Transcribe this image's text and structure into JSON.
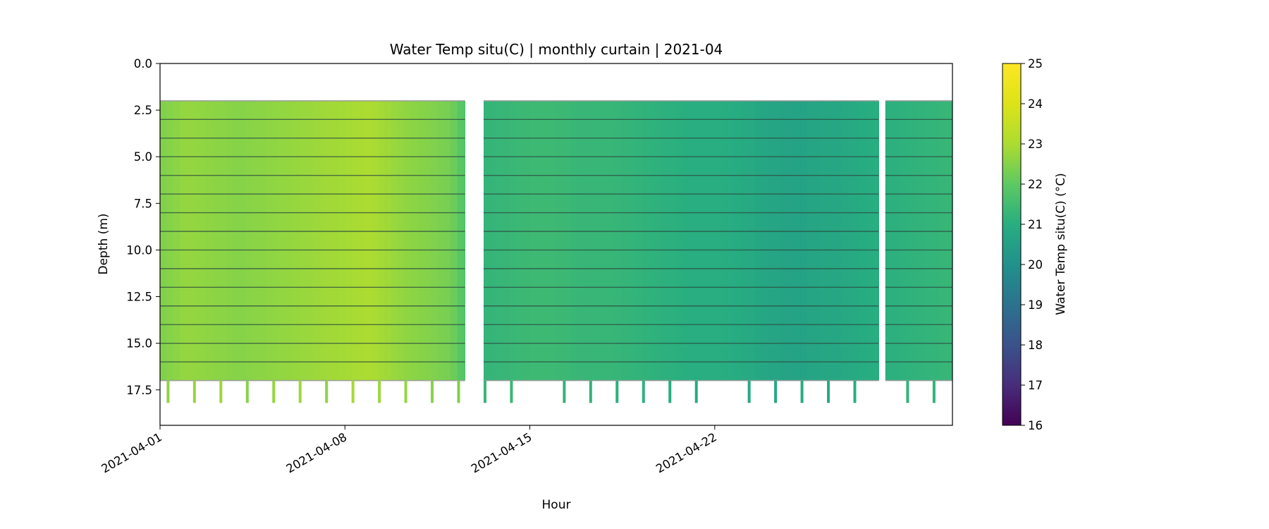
{
  "chart_data": {
    "type": "heatmap",
    "title": "Water Temp situ(C) | monthly curtain | 2021-04",
    "xlabel": "Hour",
    "ylabel": "Depth (m)",
    "x_tick_labels": [
      "2021-04-01",
      "2021-04-08",
      "2021-04-15",
      "2021-04-22"
    ],
    "y_tick_labels": [
      "0.0",
      "2.5",
      "5.0",
      "7.5",
      "10.0",
      "12.5",
      "15.0",
      "17.5"
    ],
    "y_inverted": true,
    "x_range": [
      "2021-04-01",
      "2021-05-01"
    ],
    "y_range": [
      0,
      19.4
    ],
    "colorbar": {
      "label": "Water Temp situ(C) (°C)",
      "range": [
        16,
        25
      ],
      "tick_labels": [
        "16",
        "17",
        "18",
        "19",
        "20",
        "21",
        "22",
        "23",
        "24",
        "25"
      ],
      "colormap": "viridis"
    },
    "sensor_depths_m": [
      2,
      3,
      4,
      5,
      6,
      7,
      8,
      9,
      10,
      11,
      12,
      13,
      14,
      15,
      16,
      17
    ],
    "data_segments": [
      {
        "start": "2021-04-01",
        "end": "2021-04-12 13:00",
        "top_depth": 2.0,
        "bottom_depth": 17.0
      },
      {
        "start": "2021-04-13 06:00",
        "end": "2021-04-28 05:00",
        "top_depth": 2.0,
        "bottom_depth": 17.0
      },
      {
        "start": "2021-04-28 11:00",
        "end": "2021-05-01",
        "top_depth": 2.0,
        "bottom_depth": 17.0
      }
    ],
    "daily_temperature_c": [
      {
        "date": "2021-04-01",
        "value": 22.4
      },
      {
        "date": "2021-04-02",
        "value": 22.7
      },
      {
        "date": "2021-04-03",
        "value": 22.6
      },
      {
        "date": "2021-04-04",
        "value": 22.5
      },
      {
        "date": "2021-04-05",
        "value": 22.6
      },
      {
        "date": "2021-04-06",
        "value": 22.7
      },
      {
        "date": "2021-04-07",
        "value": 22.8
      },
      {
        "date": "2021-04-08",
        "value": 22.9
      },
      {
        "date": "2021-04-09",
        "value": 23.0
      },
      {
        "date": "2021-04-10",
        "value": 22.7
      },
      {
        "date": "2021-04-11",
        "value": 22.5
      },
      {
        "date": "2021-04-12",
        "value": 22.3
      },
      {
        "date": "2021-04-13",
        "value": 21.2
      },
      {
        "date": "2021-04-14",
        "value": 21.3
      },
      {
        "date": "2021-04-15",
        "value": 21.4
      },
      {
        "date": "2021-04-16",
        "value": 21.4
      },
      {
        "date": "2021-04-17",
        "value": 21.3
      },
      {
        "date": "2021-04-18",
        "value": 21.3
      },
      {
        "date": "2021-04-19",
        "value": 21.2
      },
      {
        "date": "2021-04-20",
        "value": 21.1
      },
      {
        "date": "2021-04-21",
        "value": 21.0
      },
      {
        "date": "2021-04-22",
        "value": 21.0
      },
      {
        "date": "2021-04-23",
        "value": 20.9
      },
      {
        "date": "2021-04-24",
        "value": 20.7
      },
      {
        "date": "2021-04-25",
        "value": 20.6
      },
      {
        "date": "2021-04-26",
        "value": 20.7
      },
      {
        "date": "2021-04-27",
        "value": 20.8
      },
      {
        "date": "2021-04-28",
        "value": 21.0
      },
      {
        "date": "2021-04-29",
        "value": 21.1
      },
      {
        "date": "2021-04-30",
        "value": 21.2
      },
      {
        "date": "2021-05-01",
        "value": 21.3
      }
    ],
    "deep_readings_at_18m": [
      {
        "date": "2021-04-01",
        "value": 22.6
      },
      {
        "date": "2021-04-02",
        "value": 22.7
      },
      {
        "date": "2021-04-03",
        "value": 22.8
      },
      {
        "date": "2021-04-04",
        "value": 22.5
      },
      {
        "date": "2021-04-05",
        "value": 22.7
      },
      {
        "date": "2021-04-06",
        "value": 22.8
      },
      {
        "date": "2021-04-07",
        "value": 22.6
      },
      {
        "date": "2021-04-08",
        "value": 22.9
      },
      {
        "date": "2021-04-09",
        "value": 22.8
      },
      {
        "date": "2021-04-10",
        "value": 22.7
      },
      {
        "date": "2021-04-11",
        "value": 22.5
      },
      {
        "date": "2021-04-12",
        "value": 22.4
      },
      {
        "date": "2021-04-13",
        "value": 21.3
      },
      {
        "date": "2021-04-14",
        "value": 21.3
      },
      {
        "date": "2021-04-16",
        "value": 21.2
      },
      {
        "date": "2021-04-17",
        "value": 21.2
      },
      {
        "date": "2021-04-18",
        "value": 21.1
      },
      {
        "date": "2021-04-19",
        "value": 21.1
      },
      {
        "date": "2021-04-20",
        "value": 21.0
      },
      {
        "date": "2021-04-21",
        "value": 20.9
      },
      {
        "date": "2021-04-23",
        "value": 20.9
      },
      {
        "date": "2021-04-24",
        "value": 20.8
      },
      {
        "date": "2021-04-25",
        "value": 20.9
      },
      {
        "date": "2021-04-26",
        "value": 20.9
      },
      {
        "date": "2021-04-27",
        "value": 21.0
      },
      {
        "date": "2021-04-29",
        "value": 21.2
      },
      {
        "date": "2021-04-30",
        "value": 21.2
      }
    ],
    "grid": false,
    "legend": "colorbar-right"
  }
}
